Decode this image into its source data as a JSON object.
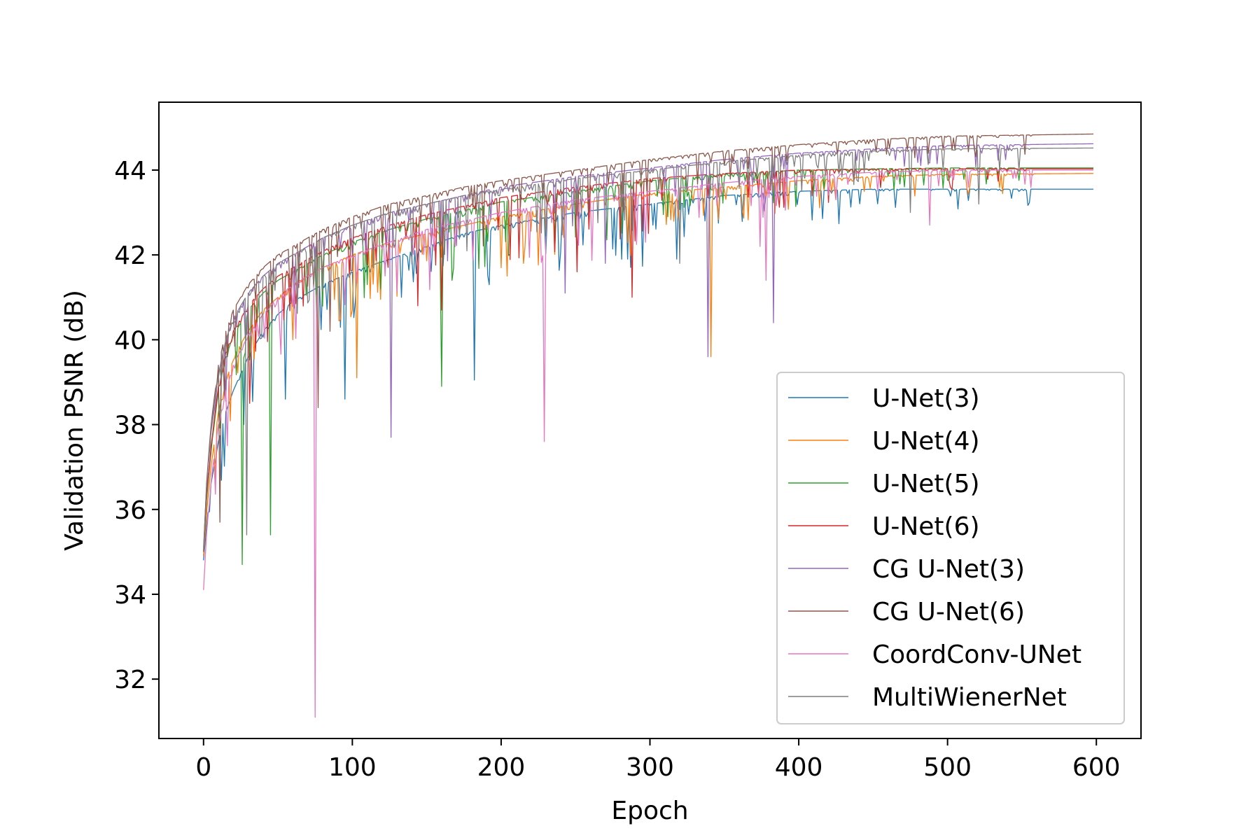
{
  "chart_data": {
    "type": "line",
    "title": "",
    "xlabel": "Epoch",
    "ylabel": "Validation PSNR (dB)",
    "xlim": [
      -30,
      630
    ],
    "ylim": [
      30.6,
      45.6
    ],
    "xticks": [
      0,
      100,
      200,
      300,
      400,
      500,
      600
    ],
    "yticks": [
      32,
      34,
      36,
      38,
      40,
      42,
      44
    ],
    "grid": false,
    "legend_position": "lower-right",
    "series": [
      {
        "name": "U-Net(3)",
        "color": "#1f77b4",
        "points": [
          [
            0,
            34.8
          ],
          [
            2,
            35.6
          ],
          [
            5,
            36.6
          ],
          [
            10,
            37.6
          ],
          [
            15,
            38.3
          ],
          [
            20,
            38.8
          ],
          [
            30,
            39.6
          ],
          [
            40,
            40.2
          ],
          [
            50,
            40.6
          ],
          [
            60,
            40.9
          ],
          [
            80,
            41.3
          ],
          [
            100,
            41.6
          ],
          [
            125,
            41.9
          ],
          [
            150,
            42.2
          ],
          [
            175,
            42.5
          ],
          [
            200,
            42.7
          ],
          [
            250,
            43.0
          ],
          [
            300,
            43.2
          ],
          [
            350,
            43.4
          ],
          [
            400,
            43.5
          ],
          [
            450,
            43.55
          ],
          [
            500,
            43.55
          ],
          [
            598,
            43.55
          ]
        ],
        "dips": [
          [
            27,
            38.0
          ],
          [
            55,
            38.6
          ],
          [
            95,
            38.6
          ],
          [
            133,
            41.0
          ],
          [
            182,
            39.05
          ],
          [
            318,
            41.9
          ],
          [
            337,
            42.8
          ]
        ]
      },
      {
        "name": "U-Net(4)",
        "color": "#ff7f0e",
        "points": [
          [
            0,
            34.9
          ],
          [
            2,
            35.9
          ],
          [
            5,
            37.0
          ],
          [
            10,
            38.3
          ],
          [
            15,
            39.0
          ],
          [
            20,
            39.6
          ],
          [
            30,
            40.2
          ],
          [
            40,
            40.7
          ],
          [
            50,
            41.0
          ],
          [
            60,
            41.3
          ],
          [
            80,
            41.7
          ],
          [
            100,
            42.0
          ],
          [
            125,
            42.3
          ],
          [
            150,
            42.5
          ],
          [
            175,
            42.7
          ],
          [
            200,
            42.9
          ],
          [
            250,
            43.2
          ],
          [
            300,
            43.45
          ],
          [
            350,
            43.6
          ],
          [
            400,
            43.75
          ],
          [
            450,
            43.85
          ],
          [
            500,
            43.9
          ],
          [
            598,
            43.92
          ]
        ],
        "dips": [
          [
            60,
            40.0
          ],
          [
            103,
            39.1
          ],
          [
            200,
            41.7
          ],
          [
            204,
            41.5
          ],
          [
            215,
            41.8
          ],
          [
            341,
            39.6
          ],
          [
            425,
            43.3
          ]
        ]
      },
      {
        "name": "U-Net(5)",
        "color": "#2ca02c",
        "points": [
          [
            0,
            35.0
          ],
          [
            2,
            36.2
          ],
          [
            5,
            37.4
          ],
          [
            10,
            38.8
          ],
          [
            15,
            39.6
          ],
          [
            20,
            40.1
          ],
          [
            30,
            40.7
          ],
          [
            40,
            41.1
          ],
          [
            50,
            41.4
          ],
          [
            60,
            41.6
          ],
          [
            80,
            42.0
          ],
          [
            100,
            42.3
          ],
          [
            125,
            42.6
          ],
          [
            150,
            42.85
          ],
          [
            175,
            43.05
          ],
          [
            200,
            43.25
          ],
          [
            250,
            43.5
          ],
          [
            300,
            43.75
          ],
          [
            350,
            43.9
          ],
          [
            400,
            44.0
          ],
          [
            450,
            44.03
          ],
          [
            500,
            44.05
          ],
          [
            598,
            44.05
          ]
        ],
        "dips": [
          [
            26,
            34.7
          ],
          [
            45,
            35.4
          ],
          [
            160,
            38.9
          ],
          [
            167,
            41.4
          ],
          [
            312,
            42.9
          ]
        ]
      },
      {
        "name": "U-Net(6)",
        "color": "#d62728",
        "points": [
          [
            0,
            35.0
          ],
          [
            2,
            36.3
          ],
          [
            5,
            37.5
          ],
          [
            10,
            38.9
          ],
          [
            15,
            39.7
          ],
          [
            20,
            40.2
          ],
          [
            30,
            40.8
          ],
          [
            40,
            41.2
          ],
          [
            50,
            41.5
          ],
          [
            60,
            41.7
          ],
          [
            80,
            42.1
          ],
          [
            100,
            42.4
          ],
          [
            125,
            42.7
          ],
          [
            150,
            42.95
          ],
          [
            175,
            43.15
          ],
          [
            200,
            43.35
          ],
          [
            250,
            43.6
          ],
          [
            300,
            43.8
          ],
          [
            350,
            43.92
          ],
          [
            400,
            44.0
          ],
          [
            450,
            44.02
          ],
          [
            500,
            44.03
          ],
          [
            598,
            44.03
          ]
        ],
        "dips": [
          [
            31,
            38.5
          ],
          [
            144,
            40.8
          ],
          [
            160,
            40.7
          ],
          [
            251,
            41.6
          ],
          [
            288,
            41.0
          ]
        ]
      },
      {
        "name": "CG U-Net(3)",
        "color": "#9467bd",
        "points": [
          [
            0,
            35.1
          ],
          [
            2,
            36.5
          ],
          [
            5,
            37.8
          ],
          [
            10,
            39.2
          ],
          [
            15,
            40.0
          ],
          [
            20,
            40.5
          ],
          [
            30,
            41.1
          ],
          [
            40,
            41.5
          ],
          [
            50,
            41.8
          ],
          [
            60,
            42.0
          ],
          [
            80,
            42.4
          ],
          [
            100,
            42.7
          ],
          [
            125,
            43.0
          ],
          [
            150,
            43.2
          ],
          [
            175,
            43.4
          ],
          [
            200,
            43.6
          ],
          [
            250,
            43.85
          ],
          [
            300,
            44.05
          ],
          [
            350,
            44.25
          ],
          [
            400,
            44.4
          ],
          [
            450,
            44.5
          ],
          [
            500,
            44.58
          ],
          [
            598,
            44.62
          ]
        ],
        "dips": [
          [
            126,
            37.7
          ],
          [
            243,
            41.1
          ],
          [
            270,
            41.8
          ],
          [
            339,
            39.6
          ],
          [
            383,
            40.4
          ]
        ]
      },
      {
        "name": "CG U-Net(6)",
        "color": "#8c564b",
        "points": [
          [
            0,
            35.0
          ],
          [
            2,
            36.6
          ],
          [
            5,
            38.0
          ],
          [
            10,
            39.4
          ],
          [
            15,
            40.2
          ],
          [
            20,
            40.7
          ],
          [
            30,
            41.3
          ],
          [
            40,
            41.7
          ],
          [
            50,
            42.0
          ],
          [
            60,
            42.2
          ],
          [
            80,
            42.6
          ],
          [
            100,
            42.9
          ],
          [
            125,
            43.2
          ],
          [
            150,
            43.4
          ],
          [
            175,
            43.6
          ],
          [
            200,
            43.75
          ],
          [
            250,
            44.0
          ],
          [
            300,
            44.25
          ],
          [
            350,
            44.45
          ],
          [
            400,
            44.6
          ],
          [
            450,
            44.72
          ],
          [
            500,
            44.8
          ],
          [
            598,
            44.85
          ]
        ],
        "dips": [
          [
            11,
            35.7
          ],
          [
            77,
            38.4
          ],
          [
            85,
            40.2
          ]
        ]
      },
      {
        "name": "CoordConv-UNet",
        "color": "#e377c2",
        "points": [
          [
            0,
            34.1
          ],
          [
            2,
            35.4
          ],
          [
            5,
            36.7
          ],
          [
            10,
            38.0
          ],
          [
            15,
            38.8
          ],
          [
            20,
            39.4
          ],
          [
            30,
            40.1
          ],
          [
            40,
            40.6
          ],
          [
            50,
            41.0
          ],
          [
            60,
            41.3
          ],
          [
            80,
            41.7
          ],
          [
            100,
            42.0
          ],
          [
            125,
            42.3
          ],
          [
            150,
            42.6
          ],
          [
            175,
            42.8
          ],
          [
            200,
            43.0
          ],
          [
            250,
            43.3
          ],
          [
            300,
            43.5
          ],
          [
            350,
            43.7
          ],
          [
            400,
            43.85
          ],
          [
            450,
            43.95
          ],
          [
            500,
            44.0
          ],
          [
            598,
            44.0
          ]
        ],
        "dips": [
          [
            16,
            37.5
          ],
          [
            75,
            31.1
          ],
          [
            229,
            37.6
          ],
          [
            374,
            42.2
          ],
          [
            378,
            41.4
          ],
          [
            488,
            42.7
          ]
        ]
      },
      {
        "name": "MultiWienerNet",
        "color": "#7f7f7f",
        "points": [
          [
            0,
            35.0
          ],
          [
            2,
            36.5
          ],
          [
            5,
            37.9
          ],
          [
            10,
            39.2
          ],
          [
            15,
            40.0
          ],
          [
            20,
            40.5
          ],
          [
            30,
            41.1
          ],
          [
            40,
            41.5
          ],
          [
            50,
            41.8
          ],
          [
            60,
            42.0
          ],
          [
            80,
            42.4
          ],
          [
            100,
            42.7
          ],
          [
            125,
            43.0
          ],
          [
            150,
            43.2
          ],
          [
            175,
            43.4
          ],
          [
            200,
            43.55
          ],
          [
            250,
            43.8
          ],
          [
            300,
            44.0
          ],
          [
            350,
            44.2
          ],
          [
            400,
            44.35
          ],
          [
            450,
            44.45
          ],
          [
            500,
            44.5
          ],
          [
            598,
            44.52
          ]
        ],
        "dips": [
          [
            29,
            35.4
          ],
          [
            320,
            41.8
          ],
          [
            475,
            43.0
          ],
          [
            521,
            43.2
          ]
        ]
      }
    ]
  }
}
